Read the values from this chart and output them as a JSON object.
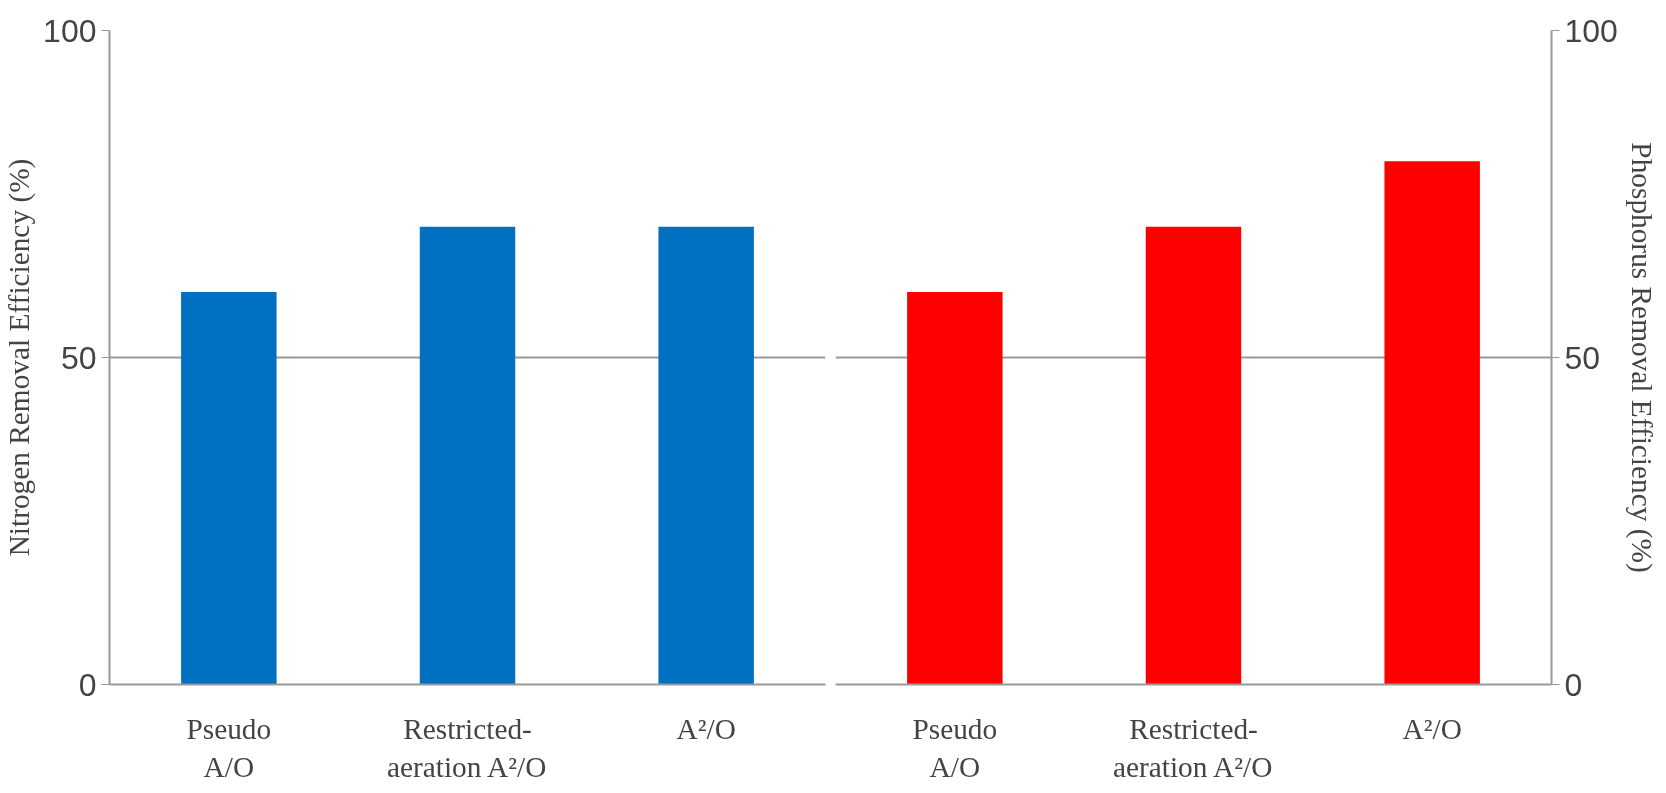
{
  "chart_data": [
    {
      "type": "bar",
      "ylabel": "Nitrogen Removal Efficiency (%)",
      "categories": [
        "Pseudo\nA/O",
        "Restricted-\naeration A²/O",
        "A²/O"
      ],
      "series": [
        {
          "color": "#0070c0",
          "values": [
            60,
            70,
            70
          ]
        }
      ],
      "ylim": [
        0,
        100
      ],
      "yticks": [
        0,
        50,
        100
      ],
      "grid": "y"
    },
    {
      "type": "bar",
      "y2label": "Phosphorus Removal Efficiency (%)",
      "categories": [
        "Pseudo\nA/O",
        "Restricted-\naeration A²/O",
        "A²/O"
      ],
      "series": [
        {
          "color": "#ff0000",
          "values": [
            60,
            70,
            80
          ],
          "axis": "y2"
        }
      ],
      "y2lim": [
        0,
        100
      ],
      "y2ticks": [
        0,
        50,
        100
      ],
      "grid": "y"
    }
  ]
}
